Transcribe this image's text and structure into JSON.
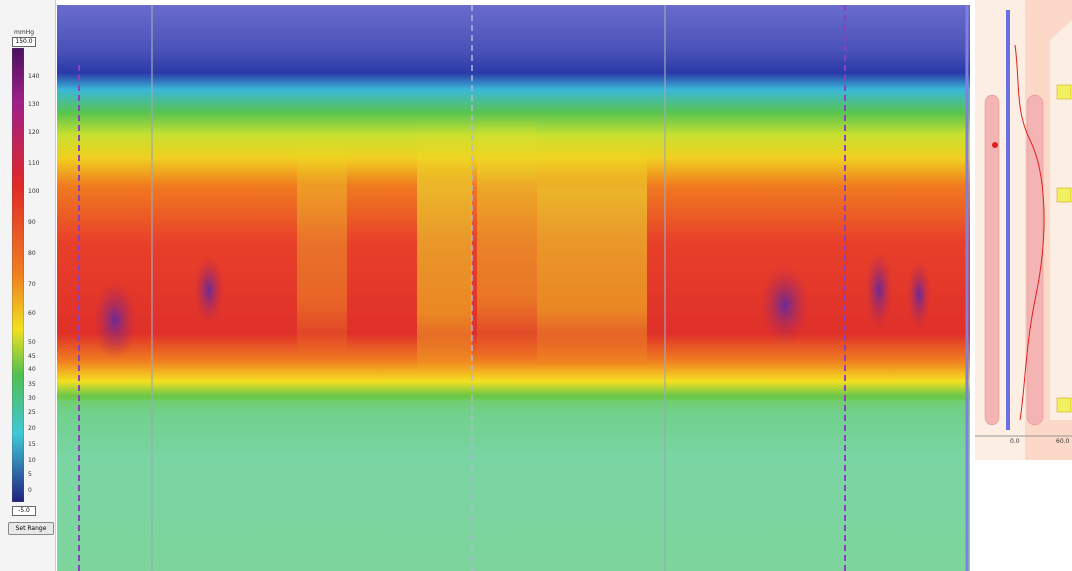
{
  "color_scale": {
    "unit": "mmHg",
    "max": "150.0",
    "min": "-5.0",
    "button": "Set Range",
    "ticks": [
      "140",
      "130",
      "120",
      "110",
      "100",
      "90",
      "80",
      "70",
      "60",
      "50",
      "45",
      "40",
      "35",
      "30",
      "25",
      "20",
      "15",
      "10",
      "5",
      "0"
    ]
  },
  "profile": {
    "x_labels": [
      "0.0",
      "60.0"
    ]
  }
}
